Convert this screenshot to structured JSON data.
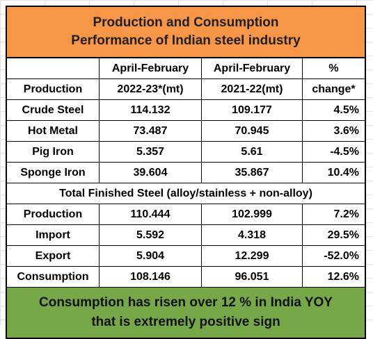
{
  "title": {
    "line1": "Production and Consumption",
    "line2": "Performance of Indian steel industry"
  },
  "header_row1": [
    "",
    "April-February",
    "April-February",
    "%"
  ],
  "header_row2": [
    "Production",
    "2022-23*(mt)",
    "2021-22(mt)",
    "change*"
  ],
  "section1_rows": [
    [
      "Crude Steel",
      "114.132",
      "109.177",
      "4.5%"
    ],
    [
      "Hot Metal",
      "73.487",
      "70.945",
      "3.6%"
    ],
    [
      "Pig Iron",
      "5.357",
      "5.61",
      "-4.5%"
    ],
    [
      "Sponge Iron",
      "39.604",
      "35.867",
      "10.4%"
    ]
  ],
  "section2_title": "Total Finished Steel (alloy/stainless + non-alloy)",
  "section2_rows": [
    [
      "Production",
      "110.444",
      "102.999",
      "7.2%"
    ],
    [
      "Import",
      "5.592",
      "4.318",
      "29.5%"
    ],
    [
      "Export",
      "5.904",
      "12.299",
      "-52.0%"
    ],
    [
      "Consumption",
      "108.146",
      "96.051",
      "12.6%"
    ]
  ],
  "footer": {
    "line1": "Consumption has risen over 12 % in India YOY",
    "line2": "that is extremely positive sign"
  },
  "colors": {
    "header_bg": "#f79646",
    "footer_bg": "#77a848"
  }
}
